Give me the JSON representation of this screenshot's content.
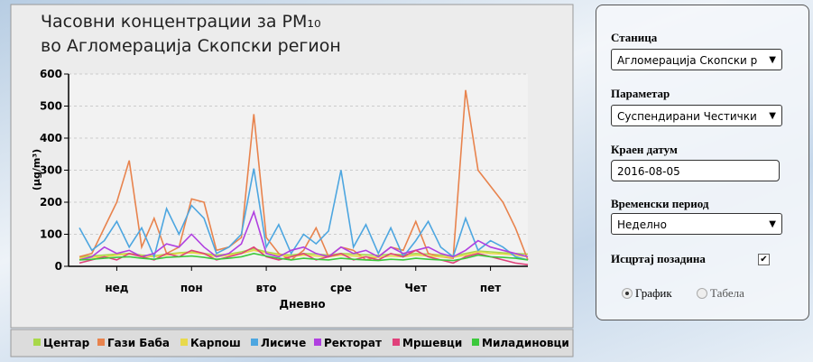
{
  "chart_data": {
    "type": "line",
    "title": "Часовни концентрации за PM₁₀",
    "subtitle": "во Агломерација Скопски регион",
    "x_label": "Дневно",
    "y_label": "(µg/m³)",
    "x": [
      0,
      4,
      8,
      12,
      16,
      20,
      24,
      28,
      32,
      36,
      40,
      44,
      48,
      52,
      56,
      60,
      64,
      68,
      72,
      76,
      80,
      84,
      88,
      92,
      96,
      100,
      104,
      108,
      112,
      116,
      120,
      124,
      128,
      132,
      136,
      140,
      144
    ],
    "xlim": [
      0,
      144
    ],
    "xticks": [
      {
        "value": 12,
        "label": "нед"
      },
      {
        "value": 36,
        "label": "пон"
      },
      {
        "value": 60,
        "label": "вто"
      },
      {
        "value": 84,
        "label": "сре"
      },
      {
        "value": 108,
        "label": "Чет"
      },
      {
        "value": 132,
        "label": "пет"
      }
    ],
    "ylim": [
      0,
      600
    ],
    "yticks": [
      0,
      100,
      200,
      300,
      400,
      500,
      600
    ],
    "grid": true,
    "series": [
      {
        "name": "Центар",
        "color": "#a8d84a",
        "values": [
          30,
          32,
          35,
          38,
          40,
          35,
          32,
          38,
          42,
          45,
          40,
          35,
          38,
          45,
          55,
          45,
          38,
          35,
          40,
          38,
          35,
          40,
          38,
          36,
          34,
          38,
          36,
          40,
          38,
          35,
          32,
          40,
          48,
          45,
          42,
          40,
          38
        ]
      },
      {
        "name": "Гази Баба",
        "color": "#e8834d",
        "values": [
          30,
          40,
          120,
          200,
          330,
          60,
          150,
          40,
          60,
          210,
          200,
          50,
          60,
          90,
          475,
          90,
          40,
          20,
          50,
          120,
          30,
          60,
          50,
          20,
          30,
          60,
          50,
          140,
          40,
          30,
          25,
          550,
          300,
          250,
          200,
          120,
          20
        ]
      },
      {
        "name": "Карпош",
        "color": "#e8d94b",
        "values": [
          25,
          28,
          30,
          35,
          38,
          32,
          30,
          35,
          40,
          42,
          38,
          30,
          35,
          40,
          50,
          42,
          35,
          30,
          35,
          32,
          30,
          35,
          32,
          30,
          28,
          32,
          30,
          35,
          32,
          30,
          28,
          35,
          45,
          40,
          38,
          35,
          30
        ]
      },
      {
        "name": "Лисиче",
        "color": "#4da6e0",
        "values": [
          120,
          50,
          80,
          140,
          60,
          120,
          30,
          180,
          100,
          190,
          150,
          40,
          60,
          100,
          305,
          60,
          130,
          40,
          100,
          70,
          110,
          300,
          60,
          130,
          40,
          120,
          30,
          80,
          140,
          60,
          30,
          150,
          50,
          80,
          60,
          30,
          20
        ]
      },
      {
        "name": "Ректорат",
        "color": "#b040e0",
        "values": [
          20,
          30,
          60,
          40,
          50,
          30,
          40,
          70,
          60,
          100,
          60,
          30,
          40,
          70,
          170,
          40,
          30,
          50,
          60,
          40,
          30,
          60,
          40,
          50,
          30,
          60,
          40,
          50,
          60,
          40,
          30,
          50,
          80,
          60,
          50,
          40,
          30
        ]
      },
      {
        "name": "Мршевци",
        "color": "#e0407a",
        "values": [
          10,
          20,
          30,
          20,
          40,
          30,
          20,
          40,
          30,
          50,
          40,
          20,
          30,
          40,
          60,
          30,
          20,
          30,
          40,
          20,
          30,
          40,
          20,
          30,
          20,
          40,
          30,
          50,
          30,
          20,
          10,
          30,
          40,
          30,
          20,
          10,
          5
        ]
      },
      {
        "name": "Миладиновци",
        "color": "#3cc83c",
        "values": [
          20,
          22,
          25,
          28,
          30,
          25,
          22,
          28,
          30,
          32,
          28,
          22,
          25,
          30,
          40,
          32,
          25,
          20,
          25,
          22,
          20,
          25,
          22,
          20,
          18,
          22,
          20,
          25,
          22,
          20,
          18,
          25,
          35,
          30,
          28,
          25,
          20
        ]
      }
    ]
  },
  "form": {
    "station_label": "Станица",
    "station": "Агломерација Скопски р",
    "parameter_label": "Параметар",
    "parameter": "Суспендирани Честички",
    "date_label": "Краен датум",
    "date": "2016-08-05",
    "period_label": "Временски период",
    "period": "Неделно",
    "background_label": "Исцртај позадина",
    "view_options": [
      "График",
      "Табела"
    ]
  }
}
